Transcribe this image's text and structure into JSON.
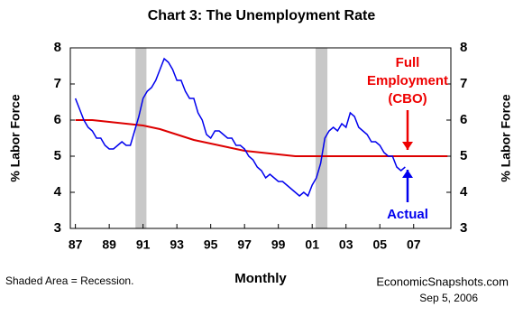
{
  "chart_data": {
    "type": "line",
    "title": "Chart 3: The Unemployment Rate",
    "y_label": "% Labor Force",
    "y2_label": "% Labor Force",
    "x_label": "Monthly",
    "xlim": [
      1986.7,
      2009.2
    ],
    "xticks": [
      {
        "value": 1987,
        "label": "87"
      },
      {
        "value": 1989,
        "label": "89"
      },
      {
        "value": 1991,
        "label": "91"
      },
      {
        "value": 1993,
        "label": "93"
      },
      {
        "value": 1995,
        "label": "95"
      },
      {
        "value": 1997,
        "label": "97"
      },
      {
        "value": 1999,
        "label": "99"
      },
      {
        "value": 2001,
        "label": "01"
      },
      {
        "value": 2003,
        "label": "03"
      },
      {
        "value": 2005,
        "label": "05"
      },
      {
        "value": 2007,
        "label": "07"
      }
    ],
    "ylim": [
      3,
      8
    ],
    "yticks": [
      3,
      4,
      5,
      6,
      7,
      8
    ],
    "y2lim": [
      3,
      8
    ],
    "y2ticks": [
      3,
      4,
      5,
      6,
      7,
      8
    ],
    "recessions": [
      [
        1990.55,
        1991.2
      ],
      [
        2001.2,
        2001.9
      ]
    ],
    "series": [
      {
        "color": "#0000ee",
        "x": [
          1987.0,
          1987.25,
          1987.5,
          1987.75,
          1988.0,
          1988.25,
          1988.5,
          1988.75,
          1989.0,
          1989.25,
          1989.5,
          1989.75,
          1990.0,
          1990.25,
          1990.5,
          1990.75,
          1991.0,
          1991.25,
          1991.5,
          1991.75,
          1992.0,
          1992.25,
          1992.5,
          1992.75,
          1993.0,
          1993.25,
          1993.5,
          1993.75,
          1994.0,
          1994.25,
          1994.5,
          1994.75,
          1995.0,
          1995.25,
          1995.5,
          1995.75,
          1996.0,
          1996.25,
          1996.5,
          1996.75,
          1997.0,
          1997.25,
          1997.5,
          1997.75,
          1998.0,
          1998.25,
          1998.5,
          1998.75,
          1999.0,
          1999.25,
          1999.5,
          1999.75,
          2000.0,
          2000.25,
          2000.5,
          2000.75,
          2001.0,
          2001.25,
          2001.5,
          2001.75,
          2002.0,
          2002.25,
          2002.5,
          2002.75,
          2003.0,
          2003.25,
          2003.5,
          2003.75,
          2004.0,
          2004.25,
          2004.5,
          2004.75,
          2005.0,
          2005.25,
          2005.5,
          2005.75,
          2006.0,
          2006.25,
          2006.5
        ],
        "values": [
          6.6,
          6.3,
          6.0,
          5.8,
          5.7,
          5.5,
          5.5,
          5.3,
          5.2,
          5.2,
          5.3,
          5.4,
          5.3,
          5.3,
          5.7,
          6.1,
          6.6,
          6.8,
          6.9,
          7.1,
          7.4,
          7.7,
          7.6,
          7.4,
          7.1,
          7.1,
          6.8,
          6.6,
          6.6,
          6.2,
          6.0,
          5.6,
          5.5,
          5.7,
          5.7,
          5.6,
          5.5,
          5.5,
          5.3,
          5.3,
          5.2,
          5.0,
          4.9,
          4.7,
          4.6,
          4.4,
          4.5,
          4.4,
          4.3,
          4.3,
          4.2,
          4.1,
          4.0,
          3.9,
          4.0,
          3.9,
          4.2,
          4.4,
          4.8,
          5.5,
          5.7,
          5.8,
          5.7,
          5.9,
          5.8,
          6.2,
          6.1,
          5.8,
          5.7,
          5.6,
          5.4,
          5.4,
          5.3,
          5.1,
          5.0,
          5.0,
          4.7,
          4.6,
          4.7
        ]
      },
      {
        "color": "#dd0000",
        "x": [
          1987,
          1988,
          1989,
          1990,
          1991,
          1992,
          1993,
          1994,
          1995,
          1996,
          1997,
          1998,
          1999,
          2000,
          2001,
          2002,
          2003,
          2004,
          2005,
          2006,
          2007,
          2008,
          2009
        ],
        "values": [
          6.0,
          6.0,
          5.95,
          5.9,
          5.85,
          5.75,
          5.6,
          5.45,
          5.35,
          5.25,
          5.15,
          5.1,
          5.05,
          5.0,
          5.0,
          5.0,
          5.0,
          5.0,
          5.0,
          5.0,
          5.0,
          5.0,
          5.0
        ]
      }
    ],
    "annotations": [
      {
        "lines": [
          "Full",
          "Employment",
          "(CBO)"
        ],
        "color": "#ee0000"
      },
      {
        "lines": [
          "Actual"
        ],
        "color": "#0000ee"
      }
    ],
    "notes": [
      "Shaded Area = Recession.",
      "EconomicSnapshots.com",
      "Sep 5, 2006"
    ]
  }
}
